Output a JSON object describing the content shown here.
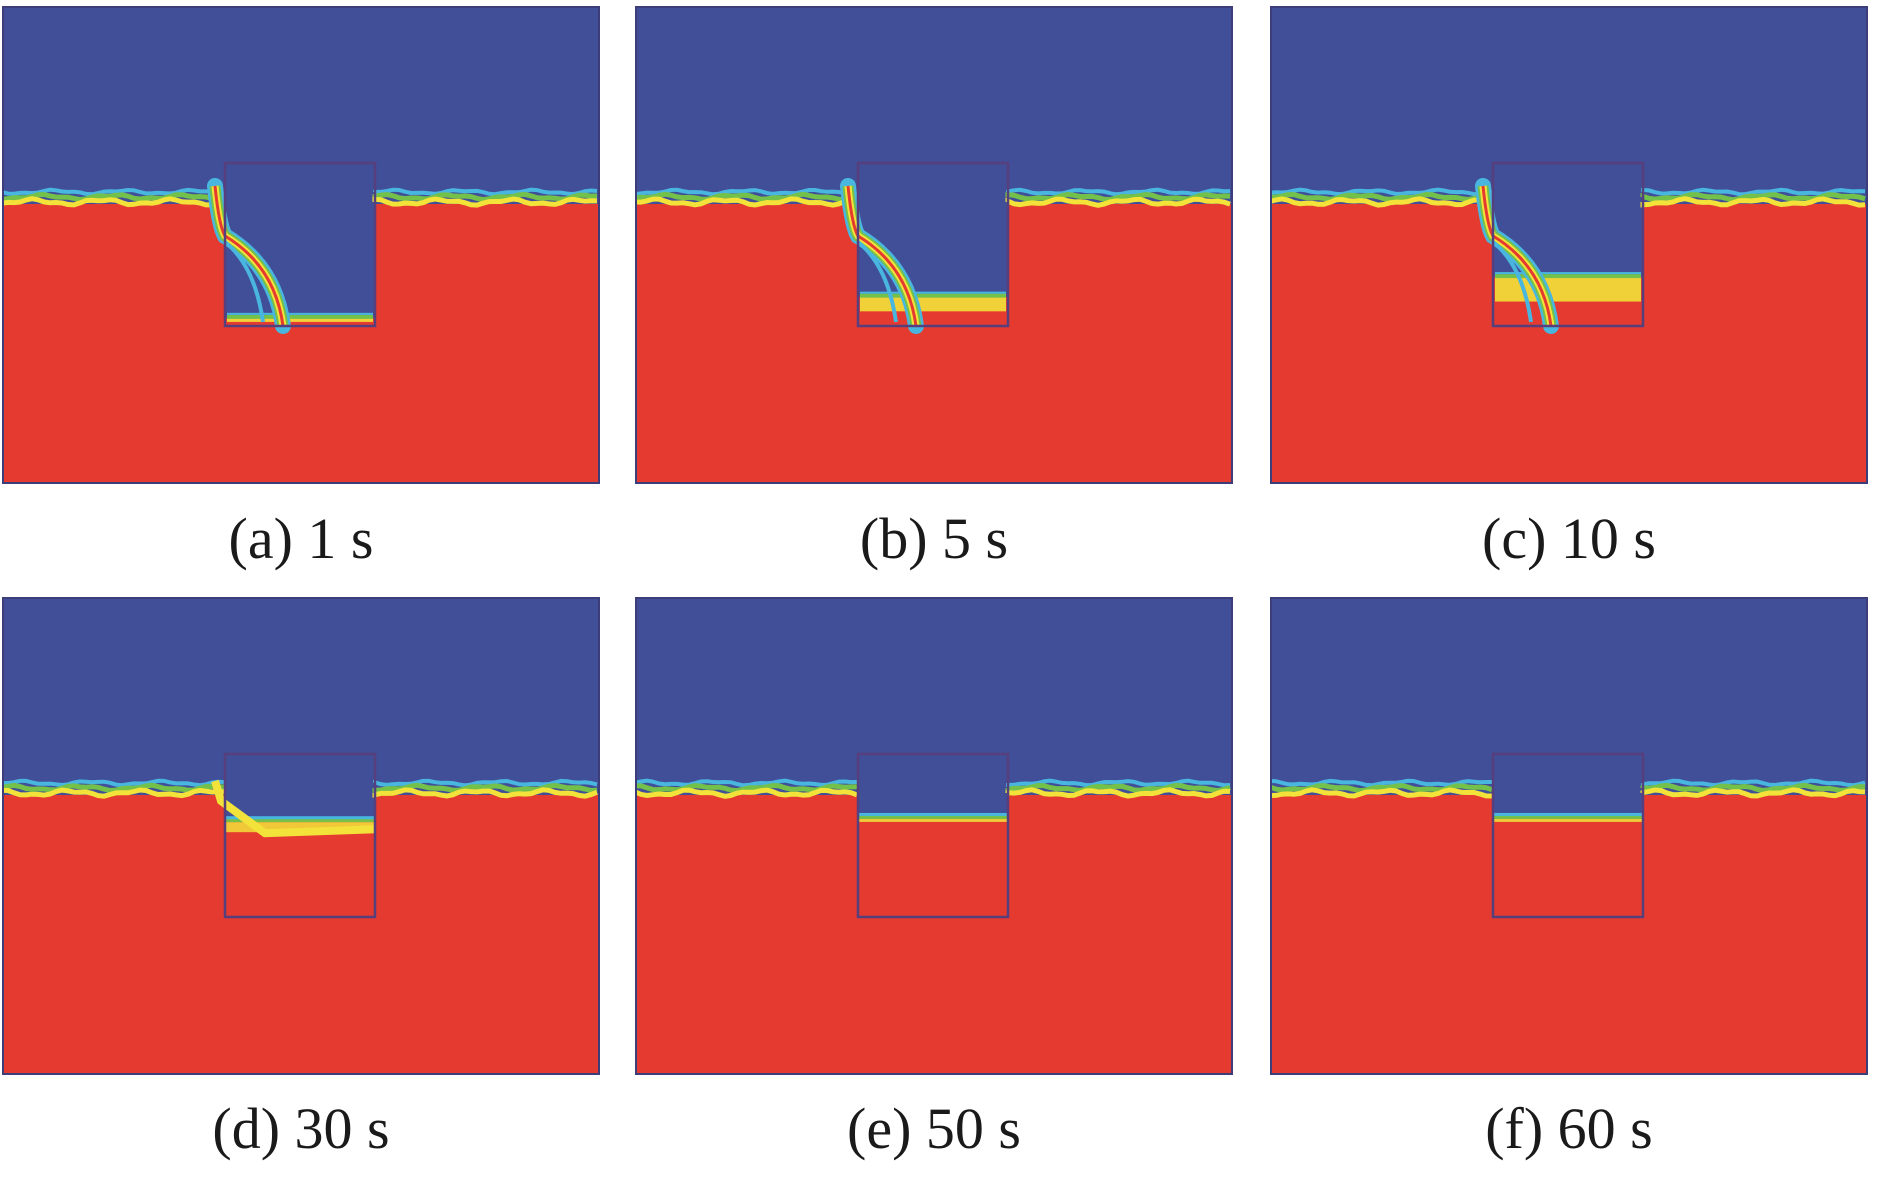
{
  "colors": {
    "gas": "#414f98",
    "liquid": "#e53a30",
    "interface_yellow": "#f2e23a",
    "interface_green": "#73c04a",
    "interface_cyan": "#49b6e0",
    "frame": "#3d3d7a",
    "cavity_outline": "#553f7d"
  },
  "panels": [
    {
      "caption": "(a) 1 s",
      "fill_level": 0.05,
      "stage": "jet"
    },
    {
      "caption": "(b) 5 s",
      "fill_level": 0.18,
      "stage": "jet"
    },
    {
      "caption": "(c) 10 s",
      "fill_level": 0.3,
      "stage": "jet"
    },
    {
      "caption": "(d) 30 s",
      "fill_level": 0.6,
      "stage": "filling"
    },
    {
      "caption": "(e) 50 s",
      "fill_level": 0.62,
      "stage": "settled"
    },
    {
      "caption": "(f) 60 s",
      "fill_level": 0.62,
      "stage": "settled"
    }
  ]
}
